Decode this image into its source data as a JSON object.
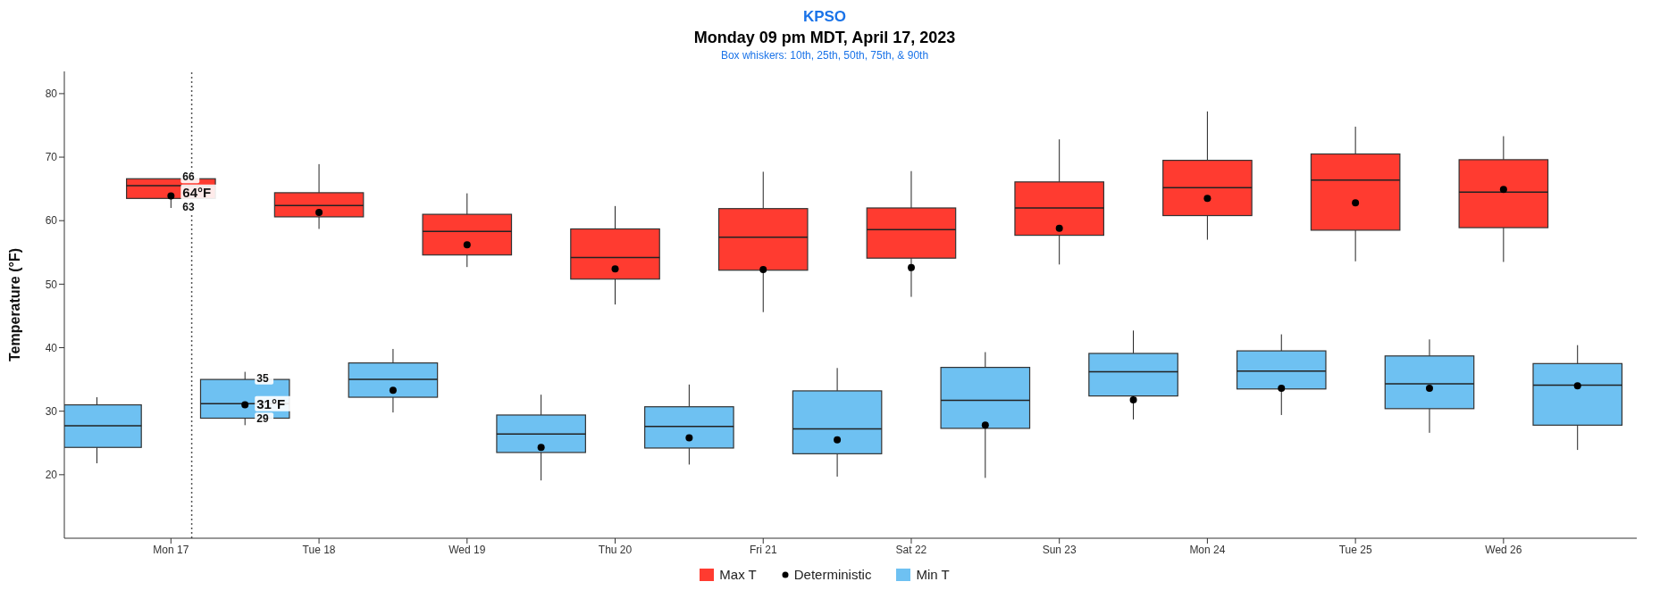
{
  "chart_data": {
    "type": "box",
    "title": "KPSO",
    "subtitle": "Monday 09 pm MDT, April 17, 2023",
    "ylabel": "Temperature (°F)",
    "xlim": [
      "2023-04-16T06:43",
      "2023-04-26T21:36"
    ],
    "xticks": [
      {
        "value": "2023-04-17",
        "label": "Mon 17"
      },
      {
        "value": "2023-04-18",
        "label": "Tue 18"
      },
      {
        "value": "2023-04-19",
        "label": "Wed 19"
      },
      {
        "value": "2023-04-20",
        "label": "Thu 20"
      },
      {
        "value": "2023-04-21",
        "label": "Fri 21"
      },
      {
        "value": "2023-04-22",
        "label": "Sat 22"
      },
      {
        "value": "2023-04-23",
        "label": "Sun 23"
      },
      {
        "value": "2023-04-24",
        "label": "Mon 24"
      },
      {
        "value": "2023-04-25",
        "label": "Tue 25"
      },
      {
        "value": "2023-04-26",
        "label": "Wed 26"
      }
    ],
    "ylim": [
      10,
      83.5
    ],
    "yticks": [
      20,
      30,
      40,
      50,
      60,
      70,
      80
    ],
    "grid": false,
    "legend": "bottom",
    "series": [
      {
        "name": "Max T",
        "color": "#ff3b30",
        "x": [
          "2023-04-17",
          "2023-04-18",
          "2023-04-19",
          "2023-04-20",
          "2023-04-21",
          "2023-04-22",
          "2023-04-23",
          "2023-04-24",
          "2023-04-25",
          "2023-04-26"
        ],
        "boxes": [
          {
            "low": 62.0,
            "q1": 63.5,
            "median": 65.5,
            "q3": 66.6,
            "high": 66.6
          },
          {
            "low": 58.7,
            "q1": 60.6,
            "median": 62.4,
            "q3": 64.4,
            "high": 68.9
          },
          {
            "low": 52.7,
            "q1": 54.6,
            "median": 58.3,
            "q3": 61.0,
            "high": 64.3
          },
          {
            "low": 46.8,
            "q1": 50.8,
            "median": 54.2,
            "q3": 58.7,
            "high": 62.3
          },
          {
            "low": 45.6,
            "q1": 52.2,
            "median": 57.4,
            "q3": 61.9,
            "high": 67.7
          },
          {
            "low": 48.0,
            "q1": 54.1,
            "median": 58.6,
            "q3": 62.0,
            "high": 67.8
          },
          {
            "low": 53.1,
            "q1": 57.7,
            "median": 62.0,
            "q3": 66.1,
            "high": 72.8
          },
          {
            "low": 57.0,
            "q1": 60.8,
            "median": 65.2,
            "q3": 69.5,
            "high": 77.2
          },
          {
            "low": 53.6,
            "q1": 58.5,
            "median": 66.4,
            "q3": 70.5,
            "high": 74.8
          },
          {
            "low": 53.5,
            "q1": 58.9,
            "median": 64.5,
            "q3": 69.6,
            "high": 73.3
          }
        ]
      },
      {
        "name": "Deterministic",
        "type": "scatter",
        "color": "#000000",
        "marker": "circle",
        "x": [
          "2023-04-17",
          "2023-04-17T12:00",
          "2023-04-18",
          "2023-04-18T12:00",
          "2023-04-19",
          "2023-04-19T12:00",
          "2023-04-20",
          "2023-04-20T12:00",
          "2023-04-21",
          "2023-04-21T12:00",
          "2023-04-22",
          "2023-04-22T12:00",
          "2023-04-23",
          "2023-04-23T12:00",
          "2023-04-24",
          "2023-04-24T12:00",
          "2023-04-25",
          "2023-04-25T12:00",
          "2023-04-26",
          "2023-04-26T12:00"
        ],
        "values": [
          63.9,
          31.0,
          61.3,
          33.3,
          56.2,
          24.3,
          52.4,
          25.8,
          52.3,
          25.5,
          52.6,
          27.8,
          58.8,
          31.8,
          63.5,
          33.6,
          62.8,
          33.6,
          64.9,
          34.0
        ]
      },
      {
        "name": "Min T",
        "color": "#6ec1f2",
        "x": [
          "2023-04-16T12:00",
          "2023-04-17T12:00",
          "2023-04-18T12:00",
          "2023-04-19T12:00",
          "2023-04-20T12:00",
          "2023-04-21T12:00",
          "2023-04-22T12:00",
          "2023-04-23T12:00",
          "2023-04-24T12:00",
          "2023-04-25T12:00",
          "2023-04-26T12:00"
        ],
        "boxes": [
          {
            "low": 21.8,
            "q1": 24.3,
            "median": 27.7,
            "q3": 31.0,
            "high": 32.2
          },
          {
            "low": 27.8,
            "q1": 28.9,
            "median": 31.2,
            "q3": 35.0,
            "high": 36.2
          },
          {
            "low": 29.8,
            "q1": 32.2,
            "median": 35.0,
            "q3": 37.6,
            "high": 39.8
          },
          {
            "low": 19.1,
            "q1": 23.5,
            "median": 26.4,
            "q3": 29.4,
            "high": 32.6
          },
          {
            "low": 21.6,
            "q1": 24.2,
            "median": 27.6,
            "q3": 30.7,
            "high": 34.2
          },
          {
            "low": 19.7,
            "q1": 23.3,
            "median": 27.2,
            "q3": 33.2,
            "high": 36.8
          },
          {
            "low": 19.5,
            "q1": 27.3,
            "median": 31.7,
            "q3": 36.9,
            "high": 39.3
          },
          {
            "low": 28.7,
            "q1": 32.4,
            "median": 36.2,
            "q3": 39.1,
            "high": 42.7
          },
          {
            "low": 29.4,
            "q1": 33.5,
            "median": 36.3,
            "q3": 39.5,
            "high": 42.1
          },
          {
            "low": 26.6,
            "q1": 30.4,
            "median": 34.3,
            "q3": 38.7,
            "high": 41.3
          },
          {
            "low": 23.9,
            "q1": 27.8,
            "median": 34.1,
            "q3": 37.5,
            "high": 40.4
          }
        ]
      }
    ],
    "ref_lines": [
      {
        "axis": "x",
        "value": "2023-04-17T03:22",
        "color": "#555555",
        "line_style": "dotted"
      }
    ],
    "annotations": [
      "Box whiskers: 10th, 25th, 50th, 75th, & 90th",
      {
        "text": "66",
        "x": "2023-04-17",
        "y": 66
      },
      {
        "text": "64°F",
        "x": "2023-04-17",
        "y": 64
      },
      {
        "text": "63",
        "x": "2023-04-17",
        "y": 63
      },
      {
        "text": "35",
        "x": "2023-04-17T12:00",
        "y": 35
      },
      {
        "text": "31°F",
        "x": "2023-04-17T12:00",
        "y": 31
      },
      {
        "text": "29",
        "x": "2023-04-17T12:00",
        "y": 29
      }
    ]
  }
}
